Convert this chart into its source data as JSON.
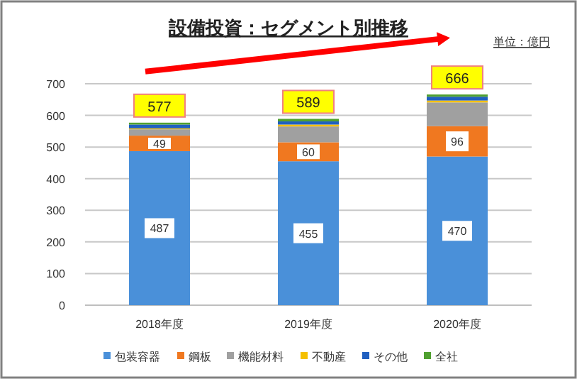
{
  "chart_data": {
    "type": "bar",
    "stacked": true,
    "title": "設備投資：セグメント別推移",
    "annotations": [
      "単位：億円"
    ],
    "categories": [
      "2018年度",
      "2019年度",
      "2020年度"
    ],
    "series": [
      {
        "name": "包装容器",
        "color": "#4a90d9",
        "values": [
          487,
          455,
          470
        ],
        "value_labels": [
          "487",
          "455",
          "470"
        ]
      },
      {
        "name": "鋼板",
        "color": "#f07820",
        "values": [
          49,
          60,
          96
        ],
        "value_labels": [
          "49",
          "60",
          "96"
        ]
      },
      {
        "name": "機能材料",
        "color": "#a0a0a0",
        "values": [
          20,
          50,
          75
        ]
      },
      {
        "name": "不動産",
        "color": "#f5c000",
        "values": [
          3,
          6,
          6
        ]
      },
      {
        "name": "その他",
        "color": "#2060c0",
        "values": [
          12,
          10,
          12
        ]
      },
      {
        "name": "全社",
        "color": "#50a030",
        "values": [
          6,
          8,
          7
        ]
      }
    ],
    "totals": [
      "577",
      "589",
      "666"
    ],
    "ylim": [
      0,
      700
    ],
    "yticks": [
      0,
      100,
      200,
      300,
      400,
      500,
      600,
      700
    ],
    "grid": "y",
    "legend": "bottom"
  }
}
